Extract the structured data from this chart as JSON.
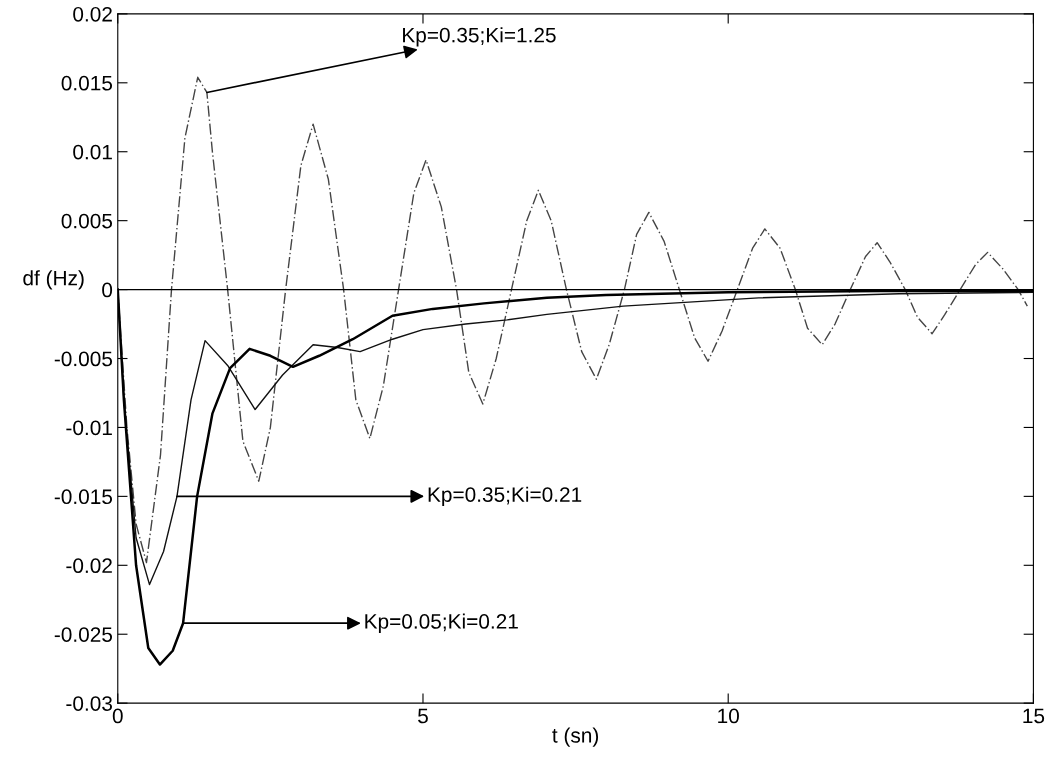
{
  "chart_data": {
    "type": "line",
    "xlabel": "t (sn)",
    "ylabel": "df (Hz)",
    "xlim": [
      0,
      15
    ],
    "xticks": [
      0,
      5,
      10,
      15
    ],
    "ylim": [
      -0.03,
      0.02
    ],
    "yticks": [
      -0.03,
      -0.025,
      -0.02,
      -0.015,
      -0.01,
      -0.005,
      0,
      0.005,
      0.01,
      0.015,
      0.02
    ],
    "grid": false,
    "legend": false,
    "ref_lines": [
      {
        "axis": "y",
        "value": 0,
        "color": "#000000",
        "line_style": "solid"
      }
    ],
    "series": [
      {
        "color": "#444444",
        "line_style": "dashed",
        "x": [
          0,
          0.15,
          0.3,
          0.47,
          0.7,
          0.88,
          1.1,
          1.31,
          1.46,
          1.55,
          1.8,
          2.05,
          2.31,
          2.5,
          2.75,
          3.0,
          3.2,
          3.45,
          3.7,
          3.9,
          4.13,
          4.35,
          4.6,
          4.85,
          5.05,
          5.3,
          5.55,
          5.75,
          5.98,
          6.2,
          6.45,
          6.7,
          6.89,
          7.1,
          7.35,
          7.6,
          7.84,
          8.05,
          8.3,
          8.5,
          8.7,
          8.95,
          9.2,
          9.45,
          9.67,
          9.9,
          10.15,
          10.4,
          10.6,
          10.85,
          11.1,
          11.3,
          11.54,
          11.75,
          12.0,
          12.25,
          12.44,
          12.65,
          12.9,
          13.1,
          13.34,
          13.55,
          13.8,
          14.05,
          14.25,
          14.5,
          14.75,
          14.9
        ],
        "values": [
          0,
          -0.01,
          -0.017,
          -0.0198,
          -0.012,
          0,
          0.011,
          0.0154,
          0.0143,
          0.01,
          0,
          -0.011,
          -0.0139,
          -0.01,
          0,
          0.009,
          0.012,
          0.008,
          0,
          -0.008,
          -0.0108,
          -0.007,
          0,
          0.007,
          0.0094,
          0.006,
          0,
          -0.006,
          -0.0083,
          -0.005,
          0,
          0.005,
          0.0072,
          0.005,
          0,
          -0.0045,
          -0.0065,
          -0.004,
          0,
          0.004,
          0.0056,
          0.0035,
          0,
          -0.0035,
          -0.0052,
          -0.003,
          0,
          0.003,
          0.0044,
          0.003,
          0,
          -0.0028,
          -0.004,
          -0.0025,
          0,
          0.0024,
          0.0034,
          0.002,
          0,
          -0.002,
          -0.0032,
          -0.0018,
          0,
          0.0018,
          0.0027,
          0.0015,
          0,
          -0.0012
        ]
      },
      {
        "color": "#111111",
        "line_style": "solid",
        "x": [
          0,
          0.1,
          0.3,
          0.52,
          0.75,
          0.97,
          1.2,
          1.43,
          1.8,
          2.25,
          2.7,
          3.2,
          3.6,
          3.97,
          4.5,
          5.0,
          5.7,
          6.38,
          7.03,
          8.28,
          10.5,
          12.8,
          15
        ],
        "values": [
          0,
          -0.008,
          -0.018,
          -0.0214,
          -0.019,
          -0.015,
          -0.008,
          -0.0037,
          -0.0055,
          -0.0087,
          -0.0062,
          -0.004,
          -0.0042,
          -0.0045,
          -0.0036,
          -0.0029,
          -0.0025,
          -0.0022,
          -0.0018,
          -0.0012,
          -0.0006,
          -0.0003,
          -0.0002
        ]
      },
      {
        "color": "#000000",
        "line_style": "solid",
        "x": [
          0,
          0.1,
          0.3,
          0.5,
          0.69,
          0.9,
          1.07,
          1.3,
          1.55,
          1.84,
          2.16,
          2.5,
          2.87,
          3.3,
          3.85,
          4.5,
          5.16,
          6.0,
          7.03,
          8.0,
          10.0,
          12.5,
          15
        ],
        "values": [
          0,
          -0.008,
          -0.02,
          -0.026,
          -0.0272,
          -0.0262,
          -0.0242,
          -0.015,
          -0.009,
          -0.0057,
          -0.0043,
          -0.0048,
          -0.0056,
          -0.0048,
          -0.0036,
          -0.0019,
          -0.0014,
          -0.001,
          -0.0006,
          -0.0004,
          -0.0002,
          -0.0001,
          -0.0001
        ]
      }
    ],
    "annotations": [
      {
        "text": "Kp=0.35;Ki=1.25",
        "x": 1.46,
        "y": 0.0143
      },
      {
        "text": "Kp=0.35;Ki=0.21",
        "x": 0.97,
        "y": -0.015
      },
      {
        "text": "Kp=0.05;Ki=0.21",
        "x": 1.07,
        "y": -0.0242
      }
    ]
  }
}
